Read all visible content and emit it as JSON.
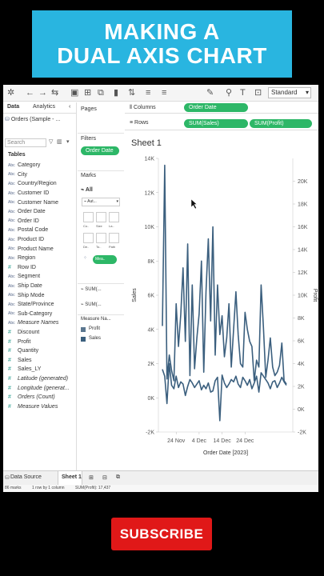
{
  "banner": {
    "line1": "MAKING A",
    "line2": "DUAL AXIS CHART"
  },
  "toolbar": {
    "standard": "Standard"
  },
  "data_pane": {
    "tab_data": "Data",
    "tab_analytics": "Analytics",
    "source": "Orders (Sample - ...",
    "search_placeholder": "Search",
    "tables_header": "Tables",
    "fields": [
      {
        "type": "Abc",
        "name": "Category"
      },
      {
        "type": "Abc",
        "name": "City"
      },
      {
        "type": "Abc",
        "name": "Country/Region"
      },
      {
        "type": "Abc",
        "name": "Customer ID"
      },
      {
        "type": "Abc",
        "name": "Customer Name"
      },
      {
        "type": "Abc",
        "name": "Order Date"
      },
      {
        "type": "Abc",
        "name": "Order ID"
      },
      {
        "type": "Abc",
        "name": "Postal Code"
      },
      {
        "type": "Abc",
        "name": "Product ID"
      },
      {
        "type": "Abc",
        "name": "Product Name"
      },
      {
        "type": "Abc",
        "name": "Region"
      },
      {
        "type": "#",
        "name": "Row ID"
      },
      {
        "type": "Abc",
        "name": "Segment"
      },
      {
        "type": "Abc",
        "name": "Ship Date"
      },
      {
        "type": "Abc",
        "name": "Ship Mode"
      },
      {
        "type": "Abc",
        "name": "State/Province"
      },
      {
        "type": "Abc",
        "name": "Sub-Category"
      },
      {
        "type": "Abc",
        "name": "Measure Names"
      },
      {
        "type": "#",
        "name": "Discount"
      },
      {
        "type": "#",
        "name": "Profit"
      },
      {
        "type": "#",
        "name": "Quantity"
      },
      {
        "type": "#",
        "name": "Sales"
      },
      {
        "type": "#",
        "name": "Sales_LY"
      },
      {
        "type": "#",
        "name": "Latitude (generated)"
      },
      {
        "type": "#",
        "name": "Longitude (generat..."
      },
      {
        "type": "#",
        "name": "Orders (Count)"
      },
      {
        "type": "#",
        "name": "Measure Values"
      }
    ]
  },
  "middle": {
    "pages": "Pages",
    "filters": "Filters",
    "filter_pill": "Order Date",
    "marks": "Marks",
    "marks_all": "All",
    "marks_type": "Aut...",
    "card_labels": [
      "Co..",
      "Size",
      "La..",
      "De..",
      "To..",
      "Path"
    ],
    "measure_pill": "Mea..",
    "sum1": "SUM(...",
    "sum2": "SUM(...",
    "legend_title": "Measure Na...",
    "legend_items": [
      {
        "label": "Profit",
        "color": "#5b7790"
      },
      {
        "label": "Sales",
        "color": "#3b5f7e"
      }
    ]
  },
  "shelves": {
    "columns_label": "Columns",
    "rows_label": "Rows",
    "columns_pill": "Order Date",
    "rows_pill1": "SUM(Sales)",
    "rows_pill2": "SUM(Profit)"
  },
  "sheet_title": "Sheet 1",
  "bottom": {
    "data_source": "Data Source",
    "sheet_tab": "Sheet 1",
    "status_marks": "86 marks",
    "status_rows": "1 row by 1 column",
    "status_sum": "SUM(Profit): 17,437"
  },
  "subscribe": "SUBSCRIBE",
  "chart_data": {
    "type": "line",
    "xlabel": "Order Date [2023]",
    "ylabel": "Sales",
    "y2label": "Profit",
    "x_ticks": [
      "24 Nov",
      "4 Dec",
      "14 Dec",
      "24 Dec"
    ],
    "y_ticks": [
      "-2K",
      "0K",
      "2K",
      "4K",
      "6K",
      "8K",
      "10K",
      "12K",
      "14K"
    ],
    "y2_ticks": [
      "-2K",
      "0K",
      "2K",
      "4K",
      "6K",
      "8K",
      "10K",
      "12K",
      "14K",
      "16K",
      "18K",
      "20K"
    ],
    "ylim": [
      -2000,
      14000
    ],
    "y2lim": [
      -4000,
      20000
    ],
    "color": "#3b5f7e",
    "series": [
      {
        "name": "Sales",
        "values": [
          4200,
          13600,
          1100,
          2500,
          1600,
          1000,
          5500,
          3000,
          4900,
          7600,
          3300,
          9000,
          1300,
          6600,
          1700,
          3500,
          4900,
          8000,
          1500,
          6200,
          9300,
          4500,
          10000,
          2500,
          6600,
          3700,
          4800,
          2400,
          3500,
          5500,
          1800,
          4000,
          6200,
          3700,
          2000,
          1800,
          5000,
          4000,
          3300,
          3000,
          1000,
          2200,
          1800,
          6600,
          4100,
          1200,
          2200,
          3500,
          1800,
          1300,
          1500,
          1900,
          3200,
          1000,
          800
        ]
      },
      {
        "name": "Profit",
        "values": [
          1500,
          900,
          -1500,
          2000,
          100,
          -200,
          900,
          -100,
          400,
          200,
          -800,
          0,
          600,
          300,
          -100,
          200,
          500,
          -300,
          100,
          -200,
          300,
          -500,
          -400,
          500,
          800,
          -3000,
          1000,
          300,
          -100,
          200,
          600,
          400,
          900,
          200,
          -100,
          800,
          500,
          100,
          600,
          -200,
          300,
          900,
          -500,
          1200,
          900,
          600,
          300,
          -200,
          400,
          500,
          -100,
          300,
          800,
          400,
          100
        ]
      }
    ]
  }
}
